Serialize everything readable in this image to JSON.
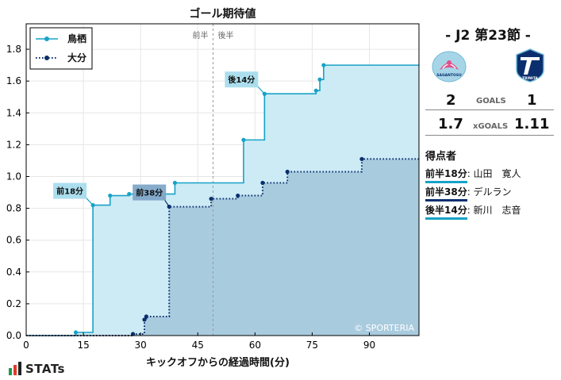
{
  "chart_data": {
    "type": "area",
    "title": "ゴール期待値",
    "xlabel": "キックオフからの経過時間(分)",
    "ylabel": "",
    "xlim": [
      0,
      103
    ],
    "ylim": [
      0,
      1.96
    ],
    "xticks": [
      0,
      15,
      30,
      45,
      60,
      75,
      90
    ],
    "yticks": [
      0.0,
      0.2,
      0.4,
      0.6,
      0.8,
      1.0,
      1.2,
      1.4,
      1.6,
      1.8
    ],
    "halftime_x": 49,
    "halftime_labels": [
      "前半",
      "後半"
    ],
    "legend_position": "top-left",
    "grid": true,
    "series": [
      {
        "name": "鳥栖",
        "color": "#17a2c7",
        "fill": "#cdebf5",
        "line_style": "solid",
        "points": [
          [
            0,
            0
          ],
          [
            13,
            0.02
          ],
          [
            17.5,
            0.82
          ],
          [
            22,
            0.88
          ],
          [
            27,
            0.89
          ],
          [
            39,
            0.96
          ],
          [
            57,
            1.23
          ],
          [
            62.5,
            1.52
          ],
          [
            76,
            1.54
          ],
          [
            77,
            1.61
          ],
          [
            78,
            1.7
          ],
          [
            103,
            1.7
          ]
        ]
      },
      {
        "name": "大分",
        "color": "#0b2f6e",
        "fill": "#a6c9dc",
        "line_style": "dotted",
        "points": [
          [
            0,
            0
          ],
          [
            28,
            0.01
          ],
          [
            31,
            0.1
          ],
          [
            31.5,
            0.12
          ],
          [
            37.5,
            0.81
          ],
          [
            48.5,
            0.86
          ],
          [
            55.5,
            0.88
          ],
          [
            62,
            0.96
          ],
          [
            68.5,
            1.03
          ],
          [
            88,
            1.11
          ],
          [
            103,
            1.11
          ]
        ]
      }
    ],
    "annotations": [
      {
        "text": "前18分",
        "x": 17.5,
        "y": 0.82,
        "team": "鳥栖"
      },
      {
        "text": "前38分",
        "x": 37.5,
        "y": 0.81,
        "team": "大分"
      },
      {
        "text": "後14分",
        "x": 62.5,
        "y": 1.52,
        "team": "鳥栖"
      }
    ],
    "watermark": "© SPORTERIA"
  },
  "match": {
    "title": "- J2 第23節 -",
    "home_goals": "2",
    "away_goals": "1",
    "goals_label": "GOALS",
    "home_xg": "1.7",
    "away_xg": "1.11",
    "xg_label": "xGOALS",
    "home_logo_text": "SAGANTOSU",
    "away_logo_text": "TRINITA",
    "home_color": "#17a2c7",
    "away_color": "#0b2f6e"
  },
  "scorers": {
    "title": "得点者",
    "items": [
      {
        "time": "前半18分",
        "name": ": 山田　寛人",
        "team": "home"
      },
      {
        "time": "前半38分",
        "name": ": デルラン",
        "team": "away"
      },
      {
        "time": "後半14分",
        "name": ": 新川　志音",
        "team": "home"
      }
    ]
  },
  "brand": {
    "text": "STATs"
  }
}
